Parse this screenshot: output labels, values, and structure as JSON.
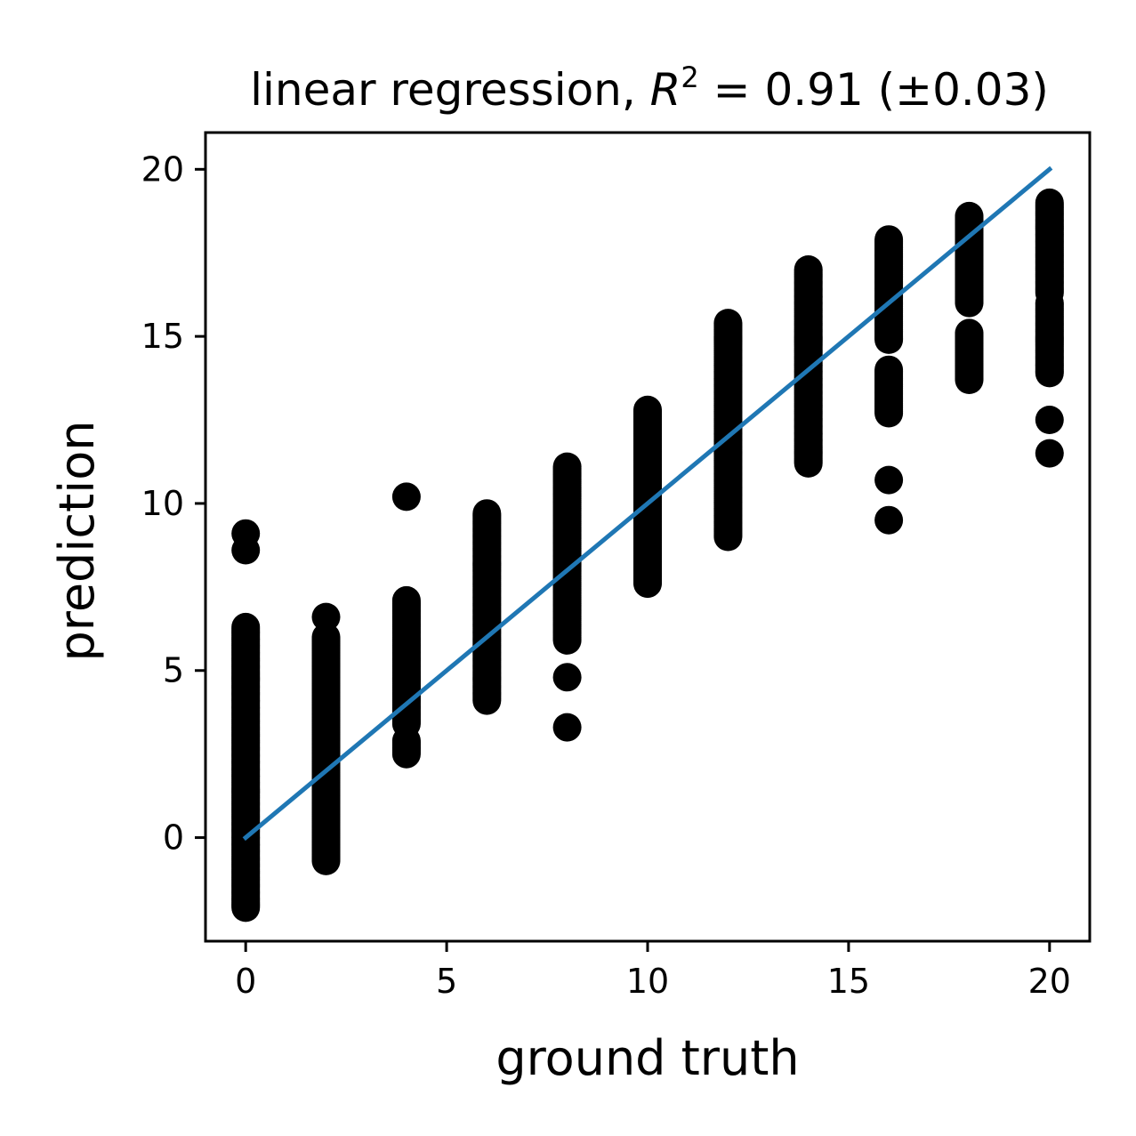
{
  "chart_data": {
    "type": "scatter",
    "title_prefix": "linear regression, ",
    "title_math_var": "R",
    "title_math_sup": "2",
    "title_suffix": " = 0.91 (±0.03)",
    "xlabel": "ground truth",
    "ylabel": "prediction",
    "xlim": [
      -1,
      21
    ],
    "ylim": [
      -3.1,
      21.1
    ],
    "xticks": [
      "0",
      "5",
      "10",
      "15",
      "20"
    ],
    "yticks": [
      "0",
      "5",
      "10",
      "15",
      "20"
    ],
    "grid": false,
    "point_color": "#000000",
    "line_color": "#1f77b4",
    "fit_line": {
      "x": [
        0,
        20
      ],
      "y": [
        0,
        20
      ]
    },
    "points": [
      {
        "x": 0,
        "ranges": [
          [
            -2.1,
            6.3
          ]
        ],
        "singles": [
          8.6,
          9.1
        ]
      },
      {
        "x": 2,
        "ranges": [
          [
            -0.7,
            6.0
          ]
        ],
        "singles": [
          6.6
        ]
      },
      {
        "x": 4,
        "ranges": [
          [
            2.5,
            2.9
          ],
          [
            3.4,
            7.1
          ]
        ],
        "singles": [
          10.2
        ]
      },
      {
        "x": 6,
        "ranges": [
          [
            4.1,
            9.7
          ]
        ],
        "singles": []
      },
      {
        "x": 8,
        "ranges": [
          [
            5.9,
            11.1
          ]
        ],
        "singles": [
          3.3,
          4.8
        ]
      },
      {
        "x": 10,
        "ranges": [
          [
            7.6,
            12.8
          ]
        ],
        "singles": []
      },
      {
        "x": 12,
        "ranges": [
          [
            9.0,
            15.4
          ]
        ],
        "singles": []
      },
      {
        "x": 14,
        "ranges": [
          [
            11.2,
            17.0
          ]
        ],
        "singles": []
      },
      {
        "x": 16,
        "ranges": [
          [
            12.7,
            14.0
          ],
          [
            14.9,
            17.9
          ]
        ],
        "singles": [
          9.5,
          10.7
        ]
      },
      {
        "x": 18,
        "ranges": [
          [
            13.7,
            15.1
          ],
          [
            16.0,
            18.6
          ]
        ],
        "singles": []
      },
      {
        "x": 20,
        "ranges": [
          [
            13.9,
            16.0
          ],
          [
            16.3,
            19.0
          ]
        ],
        "singles": [
          11.5,
          12.5
        ]
      }
    ]
  }
}
